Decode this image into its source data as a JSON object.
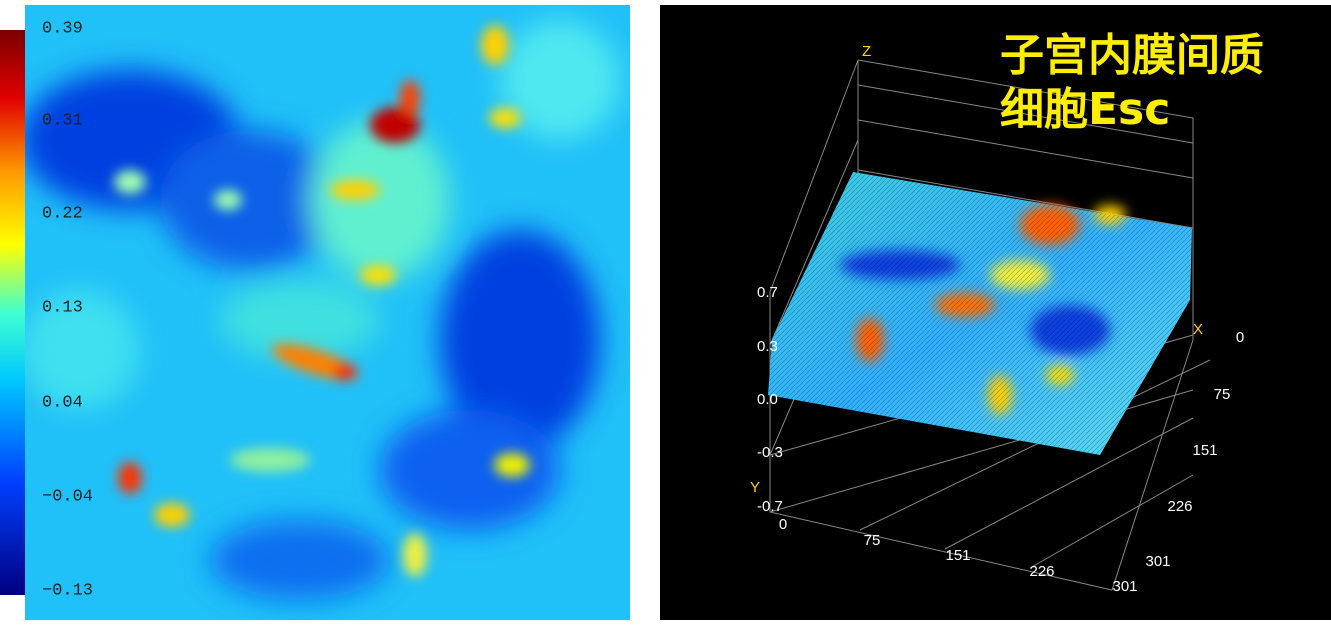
{
  "colorbar": {
    "ticks": [
      "0.39",
      "0.31",
      "0.22",
      "0.13",
      "0.04",
      "−0.04",
      "−0.13"
    ]
  },
  "surface": {
    "title": [
      "子宫内膜间质",
      "细胞Esc"
    ],
    "axis_labels": {
      "x": "X",
      "y": "Y",
      "z": "Z"
    },
    "z_ticks": [
      "0.7",
      "0.3",
      "0.0",
      "-0.3",
      "-0.7"
    ],
    "bottom_ticks": [
      "0",
      "75",
      "151",
      "226",
      "301"
    ],
    "side_ticks": [
      "0",
      "75",
      "151",
      "226",
      "301"
    ]
  }
}
